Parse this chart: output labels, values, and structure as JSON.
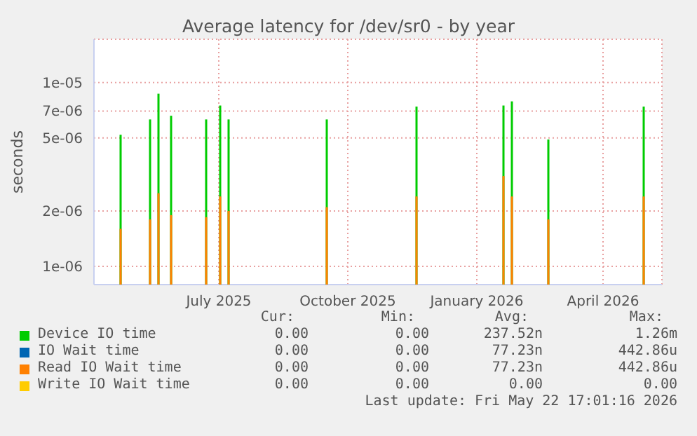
{
  "chart_data": {
    "type": "bar",
    "title": "Average latency for /dev/sr0 - by year",
    "ylabel": "seconds",
    "x": [
      "2025-05-08",
      "2025-05-29",
      "2025-06-04",
      "2025-06-13",
      "2025-07-08",
      "2025-07-18",
      "2025-07-24",
      "2025-10-02",
      "2025-12-05",
      "2026-02-05",
      "2026-02-11",
      "2026-03-09",
      "2026-05-16"
    ],
    "series": [
      {
        "name": "Device IO time",
        "color": "#00cc00",
        "values": [
          5.2e-06,
          6.3e-06,
          8.7e-06,
          6.6e-06,
          6.3e-06,
          7.5e-06,
          6.3e-06,
          6.3e-06,
          7.4e-06,
          7.5e-06,
          7.9e-06,
          4.9e-06,
          7.4e-06
        ]
      },
      {
        "name": "IO Wait time",
        "color": "#0066b3",
        "values": [
          null,
          null,
          null,
          null,
          null,
          null,
          null,
          null,
          null,
          null,
          null,
          null,
          null
        ]
      },
      {
        "name": "Read IO Wait time",
        "color": "#ff8000",
        "values": [
          1.6e-06,
          1.8e-06,
          2.5e-06,
          1.9e-06,
          1.85e-06,
          2.4e-06,
          2e-06,
          2.1e-06,
          2.4e-06,
          3.1e-06,
          2.4e-06,
          1.8e-06,
          2.4e-06
        ]
      },
      {
        "name": "Write IO Wait time",
        "color": "#ffcc00",
        "values": [
          null,
          null,
          null,
          null,
          null,
          null,
          null,
          null,
          null,
          null,
          null,
          null,
          null
        ]
      }
    ],
    "xlim": [
      "2025-04-19",
      "2026-05-29"
    ],
    "xticks": [
      {
        "value": "2025-07-17",
        "label": "July 2025"
      },
      {
        "value": "2025-10-17",
        "label": "October 2025"
      },
      {
        "value": "2026-01-17",
        "label": "January 2026"
      },
      {
        "value": "2026-04-17",
        "label": "April 2026"
      }
    ],
    "ylim": [
      7.96e-07,
      1.72e-05
    ],
    "yticks": [
      {
        "value": 1e-06,
        "label": "1e-06"
      },
      {
        "value": 2e-06,
        "label": "2e-06"
      },
      {
        "value": 5e-06,
        "label": "5e-06"
      },
      {
        "value": 7e-06,
        "label": "7e-06"
      },
      {
        "value": 1e-05,
        "label": "1e-05"
      }
    ],
    "log": true,
    "grid": true,
    "legend": "bottom",
    "annotations": [
      "Cur:",
      "Min:",
      "Avg:",
      "Max:",
      "0.00",
      "0.00",
      "237.52n",
      "1.26m",
      "0.00",
      "0.00",
      "77.23n",
      "442.86u",
      "0.00",
      "0.00",
      "77.23n",
      "442.86u",
      "0.00",
      "0.00",
      "0.00",
      "0.00",
      "Last update: Fri May 22 17:01:16 2026"
    ]
  }
}
